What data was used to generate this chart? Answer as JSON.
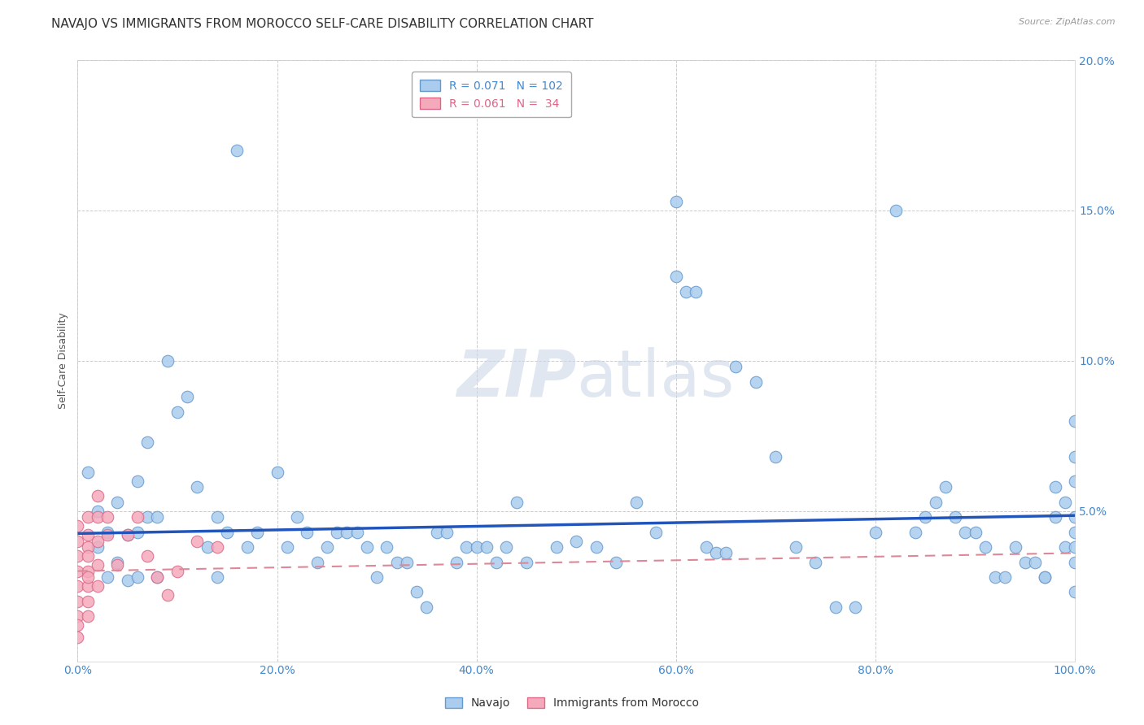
{
  "title": "NAVAJO VS IMMIGRANTS FROM MOROCCO SELF-CARE DISABILITY CORRELATION CHART",
  "source": "Source: ZipAtlas.com",
  "ylabel": "Self-Care Disability",
  "xlim": [
    0,
    1.0
  ],
  "ylim": [
    0,
    0.2
  ],
  "navajo_color": "#aaccee",
  "morocco_color": "#f5aabb",
  "navajo_edge": "#6699cc",
  "morocco_edge": "#dd6688",
  "trend_navajo_color": "#2255bb",
  "trend_morocco_color": "#dd8899",
  "legend_label_navajo": "R = 0.071   N = 102",
  "legend_label_morocco": "R = 0.061   N =  34",
  "navajo_intercept": 0.0425,
  "navajo_slope": 0.006,
  "morocco_intercept": 0.03,
  "morocco_slope": 0.006,
  "navajo_x": [
    0.01,
    0.02,
    0.02,
    0.03,
    0.03,
    0.04,
    0.04,
    0.05,
    0.05,
    0.06,
    0.06,
    0.06,
    0.07,
    0.07,
    0.08,
    0.08,
    0.09,
    0.1,
    0.11,
    0.12,
    0.13,
    0.14,
    0.14,
    0.15,
    0.16,
    0.17,
    0.18,
    0.2,
    0.21,
    0.22,
    0.23,
    0.24,
    0.25,
    0.26,
    0.27,
    0.28,
    0.29,
    0.3,
    0.31,
    0.32,
    0.33,
    0.34,
    0.35,
    0.36,
    0.37,
    0.38,
    0.39,
    0.4,
    0.41,
    0.42,
    0.43,
    0.44,
    0.45,
    0.48,
    0.5,
    0.52,
    0.54,
    0.56,
    0.58,
    0.6,
    0.6,
    0.61,
    0.62,
    0.63,
    0.64,
    0.65,
    0.66,
    0.68,
    0.7,
    0.72,
    0.74,
    0.76,
    0.78,
    0.8,
    0.82,
    0.84,
    0.85,
    0.86,
    0.87,
    0.88,
    0.89,
    0.9,
    0.91,
    0.92,
    0.93,
    0.94,
    0.95,
    0.96,
    0.97,
    0.97,
    0.98,
    0.98,
    0.99,
    0.99,
    1.0,
    1.0,
    1.0,
    1.0,
    1.0,
    1.0,
    1.0,
    1.0
  ],
  "navajo_y": [
    0.063,
    0.05,
    0.038,
    0.043,
    0.028,
    0.053,
    0.033,
    0.042,
    0.027,
    0.043,
    0.028,
    0.06,
    0.073,
    0.048,
    0.028,
    0.048,
    0.1,
    0.083,
    0.088,
    0.058,
    0.038,
    0.028,
    0.048,
    0.043,
    0.17,
    0.038,
    0.043,
    0.063,
    0.038,
    0.048,
    0.043,
    0.033,
    0.038,
    0.043,
    0.043,
    0.043,
    0.038,
    0.028,
    0.038,
    0.033,
    0.033,
    0.023,
    0.018,
    0.043,
    0.043,
    0.033,
    0.038,
    0.038,
    0.038,
    0.033,
    0.038,
    0.053,
    0.033,
    0.038,
    0.04,
    0.038,
    0.033,
    0.053,
    0.043,
    0.128,
    0.153,
    0.123,
    0.123,
    0.038,
    0.036,
    0.036,
    0.098,
    0.093,
    0.068,
    0.038,
    0.033,
    0.018,
    0.018,
    0.043,
    0.15,
    0.043,
    0.048,
    0.053,
    0.058,
    0.048,
    0.043,
    0.043,
    0.038,
    0.028,
    0.028,
    0.038,
    0.033,
    0.033,
    0.028,
    0.028,
    0.048,
    0.058,
    0.053,
    0.038,
    0.038,
    0.033,
    0.048,
    0.043,
    0.023,
    0.08,
    0.068,
    0.06
  ],
  "morocco_x": [
    0.0,
    0.0,
    0.0,
    0.0,
    0.0,
    0.0,
    0.0,
    0.0,
    0.0,
    0.01,
    0.01,
    0.01,
    0.01,
    0.01,
    0.01,
    0.01,
    0.01,
    0.01,
    0.02,
    0.02,
    0.02,
    0.02,
    0.02,
    0.03,
    0.03,
    0.04,
    0.05,
    0.06,
    0.07,
    0.08,
    0.09,
    0.1,
    0.12,
    0.14
  ],
  "morocco_y": [
    0.035,
    0.025,
    0.02,
    0.015,
    0.012,
    0.008,
    0.04,
    0.03,
    0.045,
    0.038,
    0.03,
    0.025,
    0.02,
    0.015,
    0.048,
    0.042,
    0.035,
    0.028,
    0.055,
    0.048,
    0.04,
    0.032,
    0.025,
    0.048,
    0.042,
    0.032,
    0.042,
    0.048,
    0.035,
    0.028,
    0.022,
    0.03,
    0.04,
    0.038
  ],
  "background_color": "#ffffff",
  "grid_color": "#cccccc",
  "title_fontsize": 11,
  "axis_label_fontsize": 9,
  "tick_fontsize": 10,
  "tick_color": "#4488cc",
  "watermark_color": "#ccd8e8",
  "watermark_alpha": 0.6
}
